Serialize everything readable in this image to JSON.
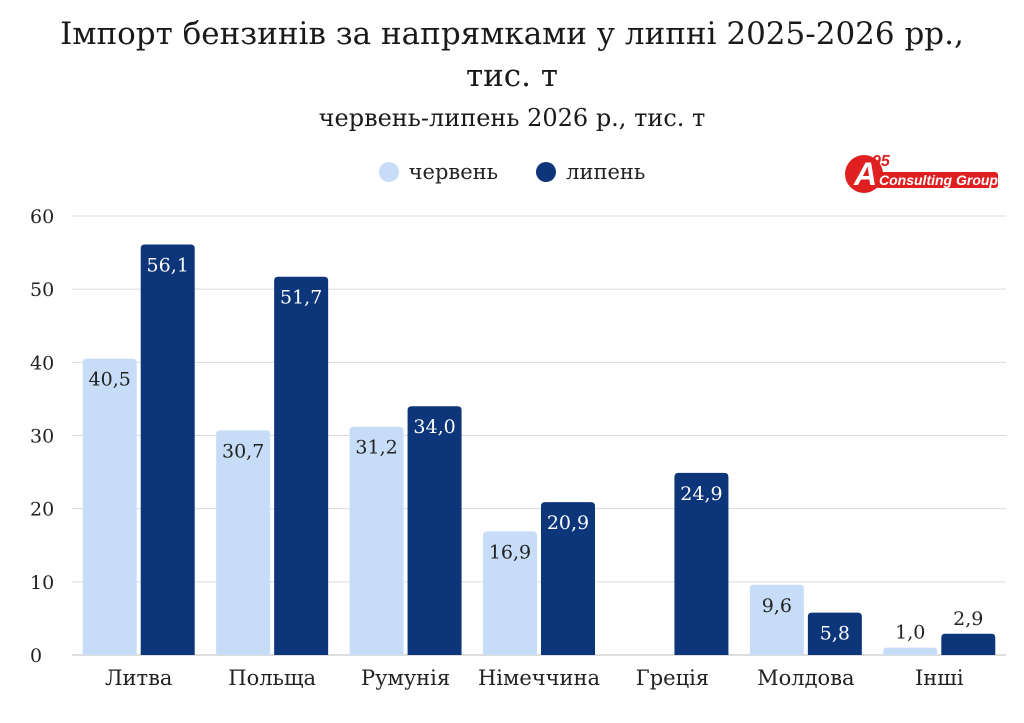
{
  "title_line1": "Імпорт бензинів за напрямками у липні 2025-2026 рр.,",
  "title_line2": "тис. т",
  "subtitle": "червень-липень 2026 р., тис. т",
  "logo": {
    "mark": "A",
    "superscript": "95",
    "text": "Consulting Group",
    "color": "#e02020"
  },
  "colors": {
    "june": "#c6dcf7",
    "july": "#0c3679"
  },
  "chart_data": {
    "type": "bar",
    "categories": [
      "Литва",
      "Польща",
      "Румунія",
      "Німеччина",
      "Греція",
      "Молдова",
      "Інші"
    ],
    "series": [
      {
        "name": "червень",
        "values": [
          40.5,
          30.7,
          31.2,
          16.9,
          null,
          9.6,
          1.0
        ],
        "labels": [
          "40,5",
          "30,7",
          "31,2",
          "16,9",
          "",
          "9,6",
          "1,0"
        ]
      },
      {
        "name": "липень",
        "values": [
          56.1,
          51.7,
          34.0,
          20.9,
          24.9,
          5.8,
          2.9
        ],
        "labels": [
          "56,1",
          "51,7",
          "34,0",
          "20,9",
          "24,9",
          "5,8",
          "2,9"
        ]
      }
    ],
    "yticks": [
      "0",
      "10",
      "20",
      "30",
      "40",
      "50",
      "60"
    ],
    "ylim": [
      0,
      60
    ],
    "grid": true,
    "legend": "top-center"
  }
}
